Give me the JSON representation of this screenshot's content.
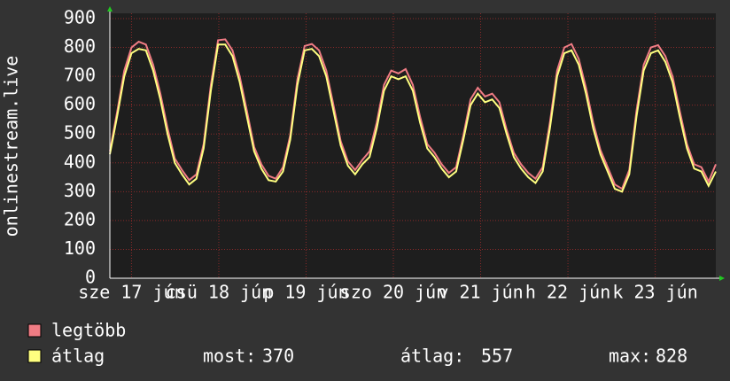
{
  "chart_data": {
    "type": "line",
    "ylabel": "onlinestream.live",
    "xlim": [
      0,
      168
    ],
    "ylim": [
      0,
      900
    ],
    "yticks": [
      0,
      100,
      200,
      300,
      400,
      500,
      600,
      700,
      800,
      900
    ],
    "xticks": [
      {
        "value": 6,
        "label": "sze 17 jún"
      },
      {
        "value": 30.2,
        "label": "csü 18 jún"
      },
      {
        "value": 54.4,
        "label": "p 19 jún"
      },
      {
        "value": 78.6,
        "label": "szo 20 jún"
      },
      {
        "value": 102.8,
        "label": "v 21 jún"
      },
      {
        "value": 127,
        "label": "h 22 jún"
      },
      {
        "value": 151.2,
        "label": "k 23 jún"
      }
    ],
    "grid": true,
    "x": [
      0,
      2,
      4,
      6,
      8,
      10,
      12,
      14,
      16,
      18,
      20,
      22,
      24,
      26,
      28,
      30,
      32,
      34,
      36,
      38,
      40,
      42,
      44,
      46,
      48,
      50,
      52,
      54,
      56,
      58,
      60,
      62,
      64,
      66,
      68,
      70,
      72,
      74,
      76,
      78,
      80,
      82,
      84,
      86,
      88,
      90,
      92,
      94,
      96,
      98,
      100,
      102,
      104,
      106,
      108,
      110,
      112,
      114,
      116,
      118,
      120,
      122,
      124,
      126,
      128,
      130,
      132,
      134,
      136,
      138,
      140,
      142,
      144,
      146,
      148,
      150,
      152,
      154,
      156,
      158,
      160,
      162,
      164,
      166,
      168
    ],
    "series": [
      {
        "name": "legtöbb",
        "color": "#f07c84",
        "values": [
          440,
          575,
          720,
          800,
          820,
          810,
          740,
          640,
          520,
          415,
          375,
          340,
          360,
          465,
          670,
          825,
          828,
          790,
          700,
          580,
          455,
          395,
          355,
          345,
          385,
          495,
          690,
          805,
          812,
          790,
          720,
          600,
          475,
          405,
          375,
          410,
          440,
          540,
          670,
          720,
          710,
          725,
          670,
          560,
          465,
          435,
          395,
          365,
          385,
          495,
          620,
          660,
          630,
          640,
          610,
          515,
          435,
          395,
          365,
          345,
          385,
          540,
          720,
          800,
          812,
          760,
          660,
          540,
          445,
          385,
          325,
          310,
          375,
          580,
          740,
          800,
          808,
          770,
          700,
          580,
          465,
          395,
          385,
          335,
          395
        ]
      },
      {
        "name": "átlag",
        "color": "#ffff80",
        "values": [
          430,
          560,
          700,
          780,
          795,
          790,
          720,
          620,
          500,
          400,
          360,
          325,
          345,
          450,
          650,
          810,
          810,
          770,
          680,
          560,
          440,
          380,
          340,
          335,
          370,
          480,
          670,
          790,
          795,
          770,
          700,
          580,
          460,
          390,
          360,
          395,
          420,
          520,
          650,
          700,
          690,
          700,
          650,
          540,
          450,
          420,
          380,
          350,
          370,
          480,
          600,
          640,
          610,
          620,
          590,
          500,
          420,
          380,
          350,
          330,
          370,
          520,
          700,
          780,
          790,
          740,
          640,
          520,
          430,
          370,
          310,
          300,
          360,
          560,
          720,
          780,
          790,
          750,
          680,
          560,
          450,
          380,
          370,
          320,
          370
        ]
      }
    ],
    "stats": [
      {
        "label": "most:",
        "value": 370
      },
      {
        "label": "átlag:",
        "value": 557
      },
      {
        "label": "max:",
        "value": 828
      }
    ]
  }
}
